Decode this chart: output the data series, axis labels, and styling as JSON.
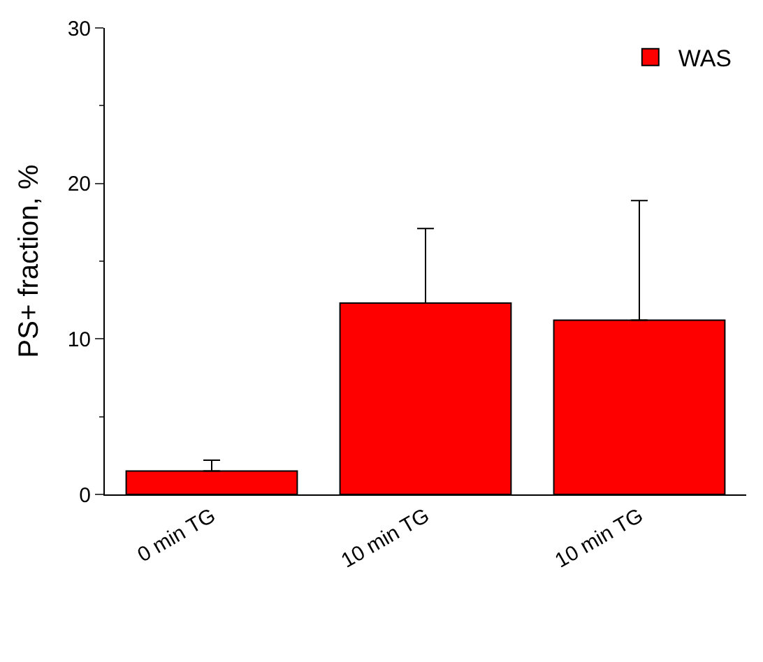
{
  "chart_data": {
    "type": "bar",
    "categories": [
      "0 min TG",
      "10 min TG",
      "10 min TG"
    ],
    "series": [
      {
        "name": "WAS",
        "color": "#ff0000",
        "values": [
          1.5,
          12.3,
          11.2
        ],
        "errors": [
          [
            1.5,
            2.2
          ],
          [
            12.3,
            17.1
          ],
          [
            11.2,
            18.9
          ]
        ]
      }
    ],
    "ylabel": "PS+ fraction, %",
    "ylim": [
      0,
      30
    ],
    "yticks": [
      0,
      10,
      20,
      30
    ],
    "legend": "top right"
  }
}
